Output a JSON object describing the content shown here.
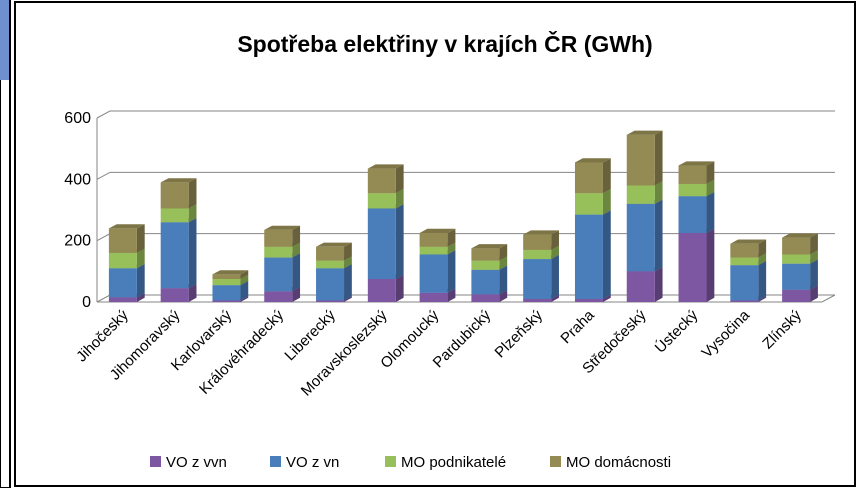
{
  "chart_data": {
    "type": "bar3d_stacked",
    "title": "Spotřeba elektřiny v krajích ČR (GWh)",
    "categories": [
      "Jihočeský",
      "Jihomoravský",
      "Karlovarský",
      "Královéhradecký",
      "Liberecký",
      "Moravskoslezský",
      "Olomoucký",
      "Pardubický",
      "Plzeňský",
      "Praha",
      "Středočeský",
      "Ústecký",
      "Vysočina",
      "Zlínský"
    ],
    "series": [
      {
        "name": "VO z vvn",
        "color": "#7e57a3",
        "values": [
          15,
          45,
          5,
          35,
          5,
          75,
          30,
          25,
          10,
          10,
          100,
          225,
          5,
          40
        ]
      },
      {
        "name": "VO z vn",
        "color": "#4a7ebb",
        "values": [
          95,
          215,
          50,
          110,
          105,
          230,
          125,
          80,
          130,
          275,
          220,
          120,
          115,
          85
        ]
      },
      {
        "name": "MO podnikatelé",
        "color": "#98c05a",
        "values": [
          50,
          45,
          20,
          35,
          25,
          50,
          25,
          30,
          30,
          70,
          60,
          40,
          25,
          30
        ]
      },
      {
        "name": "MO domácnosti",
        "color": "#948a54",
        "values": [
          80,
          85,
          15,
          55,
          45,
          80,
          45,
          40,
          50,
          100,
          165,
          60,
          45,
          55
        ]
      }
    ],
    "ylim": [
      0,
      600
    ],
    "yticks": [
      0,
      200,
      400,
      600
    ],
    "grid": true,
    "legend": "bottom"
  }
}
